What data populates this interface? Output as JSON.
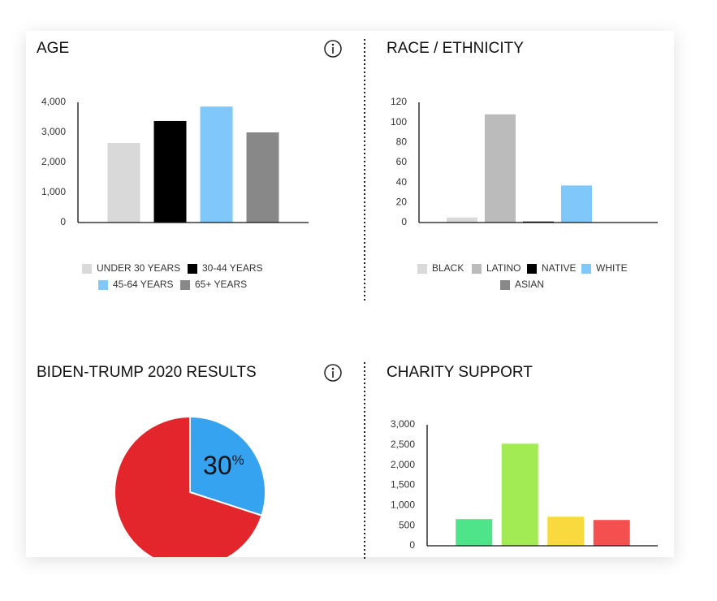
{
  "chart_data": [
    {
      "type": "bar",
      "title": "AGE",
      "categories": [
        "UNDER 30 YEARS",
        "30-44 YEARS",
        "45-64 YEARS",
        "65+ YEARS"
      ],
      "values": [
        2650,
        3380,
        3860,
        3000
      ],
      "colors": [
        "#d9d9d9",
        "#000000",
        "#80c8fa",
        "#888888"
      ],
      "ylim": [
        0,
        4000
      ],
      "yticks": [
        0,
        {
          "value": 1000,
          "label": "1,000"
        },
        {
          "value": 2000,
          "label": "2,000"
        },
        {
          "value": 3000,
          "label": "3,000"
        },
        {
          "value": 4000,
          "label": "4,000"
        }
      ],
      "legend": "bottom"
    },
    {
      "type": "bar",
      "title": "RACE / ETHNICITY",
      "categories": [
        "BLACK",
        "LATINO",
        "NATIVE",
        "WHITE",
        "ASIAN"
      ],
      "values": [
        5,
        108,
        1,
        37,
        0
      ],
      "colors": [
        "#d9d9d9",
        "#bbbbbb",
        "#000000",
        "#80c8fa",
        "#888888"
      ],
      "ylim": [
        0,
        120
      ],
      "yticks": [
        0,
        20,
        40,
        60,
        80,
        100,
        120
      ],
      "legend": "bottom"
    },
    {
      "type": "pie",
      "title": "BIDEN-TRUMP 2020 RESULTS",
      "values": [
        30,
        70
      ],
      "value_labels": [
        "30%",
        null
      ],
      "colors": [
        "#36a3f0",
        "#e3262b"
      ]
    },
    {
      "type": "bar",
      "title": "CHARITY SUPPORT",
      "values": [
        660,
        2530,
        720,
        640
      ],
      "colors": [
        "#4fe38a",
        "#a3eb55",
        "#f8da3e",
        "#f55050"
      ],
      "ylim": [
        0,
        3000
      ],
      "yticks": [
        0,
        500,
        {
          "value": 1000,
          "label": "1,000"
        },
        {
          "value": 1500,
          "label": "1,500"
        },
        {
          "value": 2000,
          "label": "2,000"
        },
        {
          "value": 2500,
          "label": "2,500"
        },
        {
          "value": 3000,
          "label": "3,000"
        }
      ]
    }
  ]
}
